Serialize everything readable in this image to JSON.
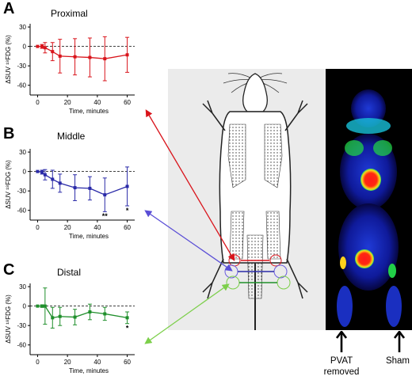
{
  "panels": {
    "A": {
      "letter": "A",
      "title": "Proximal"
    },
    "B": {
      "letter": "B",
      "title": "Middle"
    },
    "C": {
      "letter": "C",
      "title": "Distal"
    }
  },
  "image_labels": {
    "pvat_line1": "PVAT",
    "pvat_line2": "removed",
    "sham": "Sham"
  },
  "colors": {
    "proximal": "#d9141b",
    "middle": "#2a2aa8",
    "distal": "#1f8f2b",
    "mouse_arrow_middle": "#5a4ed6",
    "mouse_arrow_distal": "#7ccf4a"
  },
  "chart_data": [
    {
      "type": "line",
      "panel": "A",
      "title": "Proximal",
      "xlabel": "Time, minutes",
      "ylabel": "ΔSUV ¹⁸FDG (%)",
      "xlim": [
        -5,
        65
      ],
      "ylim": [
        -75,
        35
      ],
      "xticks": [
        0,
        20,
        40,
        60
      ],
      "yticks": [
        30,
        0,
        -30,
        -60
      ],
      "x": [
        0,
        3,
        5,
        10,
        15,
        25,
        35,
        45,
        60
      ],
      "y": [
        0,
        0,
        -2,
        -8,
        -15,
        -16,
        -17,
        -19,
        -13
      ],
      "err": [
        0,
        3,
        8,
        14,
        26,
        28,
        30,
        34,
        27
      ],
      "annotations": [],
      "color": "#d9141b"
    },
    {
      "type": "line",
      "panel": "B",
      "title": "Middle",
      "xlabel": "Time, minutes",
      "ylabel": "ΔSUV ¹⁸FDG (%)",
      "xlim": [
        -5,
        65
      ],
      "ylim": [
        -75,
        35
      ],
      "xticks": [
        0,
        20,
        40,
        60
      ],
      "yticks": [
        30,
        0,
        -30,
        -60
      ],
      "x": [
        0,
        3,
        5,
        10,
        15,
        25,
        35,
        45,
        60
      ],
      "y": [
        0,
        -1,
        -5,
        -12,
        -18,
        -25,
        -26,
        -36,
        -23
      ],
      "err": [
        0,
        3,
        8,
        14,
        14,
        20,
        18,
        26,
        30
      ],
      "annotations": [
        {
          "x": 45,
          "text": "**"
        },
        {
          "x": 60,
          "text": "*"
        }
      ],
      "color": "#2a2aa8"
    },
    {
      "type": "line",
      "panel": "C",
      "title": "Distal",
      "xlabel": "Time, minutes",
      "ylabel": "ΔSUV ¹⁸FDG (%)",
      "xlim": [
        -5,
        65
      ],
      "ylim": [
        -75,
        35
      ],
      "xticks": [
        0,
        20,
        40,
        60
      ],
      "yticks": [
        30,
        0,
        -30,
        -60
      ],
      "x": [
        0,
        3,
        5,
        10,
        15,
        25,
        35,
        45,
        60
      ],
      "y": [
        0,
        0,
        0,
        -18,
        -16,
        -17,
        -9,
        -12,
        -18
      ],
      "err": [
        0,
        2,
        28,
        16,
        14,
        12,
        12,
        10,
        9
      ],
      "annotations": [
        {
          "x": 60,
          "text": "*"
        }
      ],
      "color": "#1f8f2b"
    }
  ]
}
